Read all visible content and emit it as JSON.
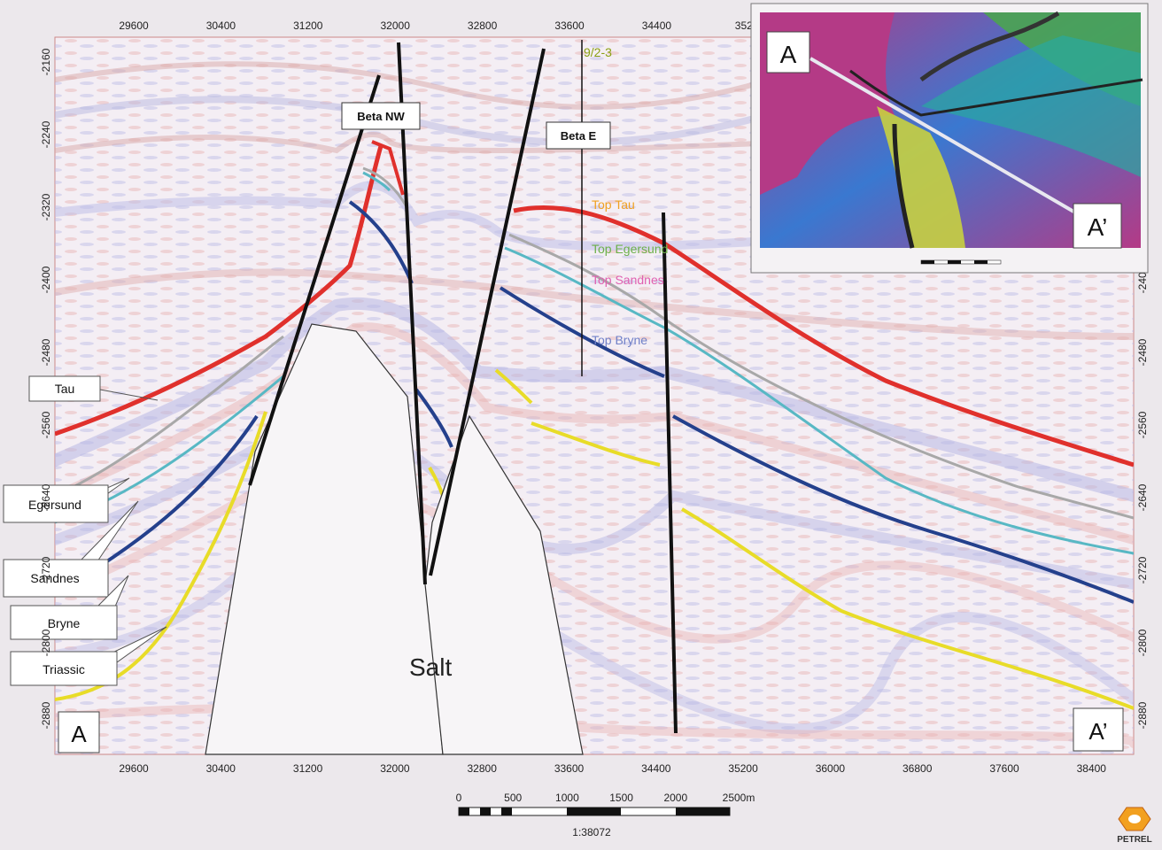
{
  "section": {
    "x_ticks_top": [
      "29600",
      "30400",
      "31200",
      "32000",
      "32800",
      "33600",
      "34400",
      "352"
    ],
    "x_ticks_bottom": [
      "29600",
      "30400",
      "31200",
      "32000",
      "32800",
      "33600",
      "34400",
      "35200",
      "36000",
      "36800",
      "37600",
      "38400"
    ],
    "y_ticks_left": [
      "-2160",
      "-2240",
      "-2320",
      "-2400",
      "-2480",
      "-2560",
      "-2640",
      "-2720",
      "-2800",
      "-2880"
    ],
    "y_ticks_right": [
      "-2400",
      "-2480",
      "-2560",
      "-2640",
      "-2720",
      "-2800",
      "-2880"
    ],
    "fault_labels": {
      "beta_nw": "Beta NW",
      "beta_e": "Beta E"
    },
    "well": {
      "name": "9/2-3"
    },
    "well_tops": {
      "tau": "Top Tau",
      "egersund": "Top Egersund",
      "sandnes": "Top Sandnes",
      "bryne": "Top Bryne"
    },
    "horizon_labels": {
      "tau": "Tau",
      "egersund": "Egersund",
      "sandnes": "Sandnes",
      "bryne": "Bryne",
      "triassic": "Triassic"
    },
    "salt_label": "Salt",
    "corner_start": "A",
    "corner_end": "A’"
  },
  "inset_map": {
    "point_start": "A",
    "point_end": "A’"
  },
  "scale_bar": {
    "labels": [
      "0",
      "500",
      "1000",
      "1500",
      "2000",
      "2500m"
    ],
    "ratio": "1:38072"
  },
  "logo": {
    "text": "PETREL"
  },
  "colors": {
    "tau": "#e0302c",
    "egersund": "#a8a8a8",
    "sandnes": "#58b8c4",
    "bryne": "#24408c",
    "triassic": "#e8dc28",
    "well_top_tau": "#f0a020",
    "well_top_egersund": "#6cb04a",
    "well_top_sandnes": "#e060b0",
    "well_top_bryne": "#7080c8"
  }
}
